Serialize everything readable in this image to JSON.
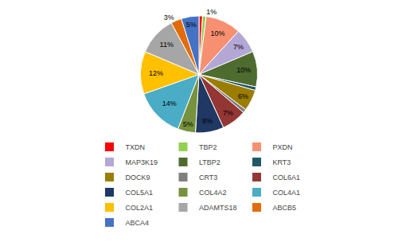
{
  "chart_data": {
    "type": "pie",
    "categories": [
      "TXDN",
      "TBP2",
      "PXDN",
      "MAP3K19",
      "LTBP2",
      "KRT3",
      "DOCK9",
      "CRT3",
      "COL6A1",
      "COL5A1",
      "COL4A2",
      "COL4A1",
      "COL2A1",
      "ADAMTS18",
      "ABCB5",
      "ABCA4"
    ],
    "values": [
      1,
      1,
      10,
      7,
      10,
      1,
      6,
      1,
      7,
      8,
      5,
      14,
      12,
      11,
      3,
      5
    ],
    "value_labels": [
      null,
      "1%",
      "10%",
      "7%",
      "10%",
      null,
      "6%",
      null,
      "7%",
      "8%",
      "5%",
      "14%",
      "12%",
      "11%",
      "3%",
      "5%"
    ],
    "colors": [
      "#FF0000",
      "#93D050",
      "#F79070",
      "#B3A7D6",
      "#4E6B30",
      "#215868",
      "#9B7D00",
      "#7F7F7F",
      "#943634",
      "#1F3864",
      "#76923C",
      "#4BACC6",
      "#FFC000",
      "#A6A6A6",
      "#E36C0A",
      "#4472C4"
    ],
    "data_labels": true,
    "legend": "bottom"
  }
}
